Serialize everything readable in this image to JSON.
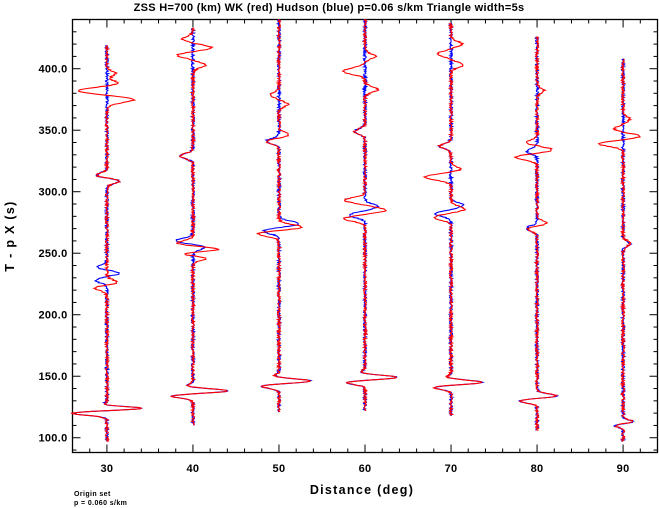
{
  "chart_data": {
    "type": "line",
    "title": "ZSS H=700 (km) WK (red) Hudson (blue) p=0.06 s/km Triangle width=5s",
    "xlabel": "Distance (deg)",
    "ylabel": "T - p X (s)",
    "xlim": [
      26,
      94
    ],
    "ylim": [
      88,
      440
    ],
    "x_ticks": [
      30,
      40,
      50,
      60,
      70,
      80,
      90
    ],
    "x_tick_labels": [
      "30",
      "40",
      "50",
      "60",
      "70",
      "80",
      "90"
    ],
    "y_ticks": [
      100,
      150,
      200,
      250,
      300,
      350,
      400
    ],
    "y_tick_labels": [
      "100.0",
      "150.0",
      "200.0",
      "250.0",
      "300.0",
      "350.0",
      "400.0"
    ],
    "grid": false,
    "series": [
      {
        "name": "WK",
        "color": "#ff0000"
      },
      {
        "name": "Hudson",
        "color": "#0000ff"
      }
    ],
    "traces": [
      {
        "distance": 30,
        "start": 97,
        "end": 419,
        "pulses": [
          [
            120,
            -4.2,
            2.4,
            "both"
          ],
          [
            124,
            4.8,
            2.2,
            "both"
          ],
          [
            126,
            -1.2,
            2,
            "both"
          ],
          [
            222,
            -1.6,
            3,
            "red"
          ],
          [
            226,
            1.4,
            3,
            "red"
          ],
          [
            228,
            -1.3,
            3,
            "blue"
          ],
          [
            234,
            1.6,
            3,
            "blue"
          ],
          [
            238,
            -1.2,
            3,
            "blue"
          ],
          [
            309,
            1.6,
            3,
            "both"
          ],
          [
            313,
            -1.4,
            3,
            "both"
          ],
          [
            375,
            3.2,
            3.5,
            "red"
          ],
          [
            382,
            -3.5,
            3.5,
            "red"
          ],
          [
            388,
            1.4,
            3,
            "red"
          ],
          [
            396,
            1,
            3,
            "red"
          ]
        ]
      },
      {
        "distance": 40,
        "start": 110,
        "end": 433,
        "pulses": [
          [
            134,
            -2.6,
            2.4,
            "both"
          ],
          [
            138,
            4.2,
            2.4,
            "both"
          ],
          [
            142,
            -0.8,
            2,
            "both"
          ],
          [
            249,
            -3.6,
            3,
            "red"
          ],
          [
            253,
            3.6,
            3,
            "red"
          ],
          [
            247,
            3.2,
            3,
            "red"
          ],
          [
            258,
            -2,
            3,
            "red"
          ],
          [
            255,
            1.4,
            3,
            "blue"
          ],
          [
            260,
            -2,
            3,
            "blue"
          ],
          [
            329,
            -1.5,
            3,
            "both"
          ],
          [
            403,
            1.5,
            3,
            "red"
          ],
          [
            411,
            -1.8,
            3,
            "red"
          ],
          [
            417,
            2.2,
            3,
            "red"
          ],
          [
            424,
            -1.2,
            3,
            "red"
          ]
        ]
      },
      {
        "distance": 50,
        "start": 121,
        "end": 440,
        "pulses": [
          [
            142,
            -2.2,
            2.4,
            "both"
          ],
          [
            146,
            3.8,
            2.4,
            "both"
          ],
          [
            150,
            -0.6,
            2,
            "both"
          ],
          [
            266,
            -2.6,
            3,
            "red"
          ],
          [
            271,
            2.8,
            3,
            "red"
          ],
          [
            268,
            -1.8,
            3,
            "blue"
          ],
          [
            274,
            2.4,
            3,
            "blue"
          ],
          [
            341,
            -1.5,
            3,
            "both"
          ],
          [
            346,
            1.2,
            3,
            "red"
          ],
          [
            371,
            1,
            3,
            "red"
          ],
          [
            379,
            -1,
            3,
            "red"
          ]
        ]
      },
      {
        "distance": 60,
        "start": 122,
        "end": 440,
        "pulses": [
          [
            145,
            -2.2,
            2.4,
            "both"
          ],
          [
            149,
            3.8,
            2.4,
            "both"
          ],
          [
            153,
            -0.6,
            2,
            "both"
          ],
          [
            278,
            -2.4,
            3,
            "red"
          ],
          [
            285,
            2.4,
            3,
            "red"
          ],
          [
            293,
            -2.4,
            3,
            "red"
          ],
          [
            281,
            -1.8,
            3,
            "blue"
          ],
          [
            288,
            1.4,
            3,
            "blue"
          ],
          [
            349,
            -1.2,
            3,
            "both"
          ],
          [
            383,
            1.5,
            3,
            "red"
          ],
          [
            398,
            -2.6,
            3.5,
            "red"
          ],
          [
            410,
            1.2,
            3,
            "red"
          ]
        ]
      },
      {
        "distance": 70,
        "start": 118,
        "end": 437,
        "pulses": [
          [
            141,
            -2.2,
            2.4,
            "both"
          ],
          [
            145,
            3.8,
            2.4,
            "both"
          ],
          [
            149,
            -0.6,
            2,
            "both"
          ],
          [
            279,
            -2,
            3,
            "red"
          ],
          [
            286,
            1.6,
            3,
            "red"
          ],
          [
            282,
            -1.8,
            3,
            "blue"
          ],
          [
            289,
            1.4,
            3,
            "blue"
          ],
          [
            312,
            -3,
            3.5,
            "red"
          ],
          [
            318,
            1.2,
            3,
            "red"
          ],
          [
            337,
            -1.3,
            3,
            "both"
          ],
          [
            403,
            1.4,
            3,
            "red"
          ],
          [
            412,
            -1.6,
            3,
            "red"
          ],
          [
            420,
            1.3,
            3,
            "red"
          ]
        ]
      },
      {
        "distance": 80,
        "start": 106,
        "end": 426,
        "pulses": [
          [
            130,
            -2.2,
            2.4,
            "both"
          ],
          [
            134,
            2.4,
            2.4,
            "both"
          ],
          [
            270,
            -1.3,
            3,
            "both"
          ],
          [
            274,
            1.2,
            3,
            "red"
          ],
          [
            328,
            -2.6,
            3,
            "red"
          ],
          [
            334,
            1.8,
            3,
            "red"
          ],
          [
            340,
            -1.2,
            3,
            "red"
          ],
          [
            333,
            -1.2,
            3,
            "blue"
          ],
          [
            382,
            0.8,
            3,
            "red"
          ]
        ]
      },
      {
        "distance": 90,
        "start": 97,
        "end": 408,
        "pulses": [
          [
            110,
            -1,
            2,
            "both"
          ],
          [
            113,
            1.2,
            2,
            "both"
          ],
          [
            258,
            0.8,
            3,
            "both"
          ],
          [
            339,
            -2.8,
            3,
            "red"
          ],
          [
            345,
            2,
            3,
            "red"
          ],
          [
            351,
            -1,
            3,
            "red"
          ],
          [
            359,
            0.8,
            3,
            "red"
          ]
        ]
      }
    ]
  },
  "note": {
    "line1": "Origin set",
    "line2": "p = 0.060 s/km"
  }
}
